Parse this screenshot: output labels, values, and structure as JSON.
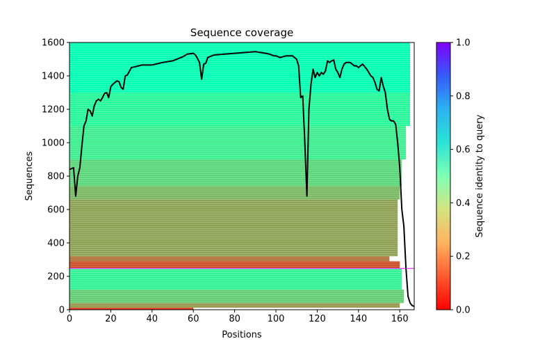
{
  "chart_data": {
    "type": "heatmap",
    "title": "Sequence coverage",
    "xlabel": "Positions",
    "ylabel": "Sequences",
    "xlim": [
      0,
      167
    ],
    "ylim": [
      0,
      1600
    ],
    "xticks": [
      "0",
      "20",
      "40",
      "60",
      "80",
      "100",
      "120",
      "140",
      "160"
    ],
    "xtick_values": [
      0,
      20,
      40,
      60,
      80,
      100,
      120,
      140,
      160
    ],
    "yticks": [
      "0",
      "200",
      "400",
      "600",
      "800",
      "1000",
      "1200",
      "1400",
      "1600"
    ],
    "ytick_values": [
      0,
      200,
      400,
      600,
      800,
      1000,
      1200,
      1400,
      1600
    ],
    "colorbar": {
      "label": "Sequence identity to query",
      "range": [
        0,
        1
      ],
      "ticks": [
        "0.0",
        "0.2",
        "0.4",
        "0.6",
        "0.8",
        "1.0"
      ],
      "tick_values": [
        0,
        0.2,
        0.4,
        0.6,
        0.8,
        1.0
      ],
      "colormap": "rainbow_r"
    },
    "bands": [
      {
        "y0": 0,
        "y1": 12,
        "x0": 0,
        "x1": 60,
        "identity": 0.06
      },
      {
        "y0": 12,
        "y1": 40,
        "x0": 0,
        "x1": 160,
        "identity": 0.2
      },
      {
        "y0": 40,
        "y1": 120,
        "x0": 0,
        "x1": 162,
        "identity": 0.3
      },
      {
        "y0": 120,
        "y1": 245,
        "x0": 0,
        "x1": 161,
        "identity": 0.4
      },
      {
        "y0": 245,
        "y1": 250,
        "x0": 0,
        "x1": 167,
        "identity": 0.98
      },
      {
        "y0": 250,
        "y1": 290,
        "x0": 0,
        "x1": 160,
        "identity": 0.1
      },
      {
        "y0": 290,
        "y1": 320,
        "x0": 0,
        "x1": 155,
        "identity": 0.15
      },
      {
        "y0": 320,
        "y1": 660,
        "x0": 0,
        "x1": 159,
        "identity": 0.22
      },
      {
        "y0": 660,
        "y1": 740,
        "x0": 0,
        "x1": 160,
        "identity": 0.26
      },
      {
        "y0": 740,
        "y1": 900,
        "x0": 0,
        "x1": 161,
        "identity": 0.32
      },
      {
        "y0": 900,
        "y1": 1100,
        "x0": 0,
        "x1": 163,
        "identity": 0.38
      },
      {
        "y0": 1100,
        "y1": 1300,
        "x0": 0,
        "x1": 165,
        "identity": 0.42
      },
      {
        "y0": 1300,
        "y1": 1600,
        "x0": 0,
        "x1": 165,
        "identity": 0.5
      }
    ],
    "coverage": {
      "x": [
        0,
        2,
        3,
        4,
        5,
        6,
        7,
        8,
        9,
        10,
        11,
        12,
        13,
        14,
        15,
        16,
        17,
        18,
        19,
        20,
        21,
        22,
        23,
        24,
        25,
        26,
        27,
        28,
        30,
        32,
        35,
        40,
        45,
        50,
        55,
        57,
        60,
        61,
        62,
        63,
        64,
        65,
        66,
        67,
        70,
        75,
        80,
        85,
        90,
        95,
        97,
        99,
        100,
        102,
        105,
        108,
        110,
        111,
        112,
        113,
        114,
        115,
        116,
        117,
        118,
        119,
        120,
        121,
        122,
        123,
        124,
        125,
        126,
        127,
        128,
        129,
        130,
        131,
        132,
        133,
        134,
        135,
        136,
        137,
        138,
        139,
        140,
        142,
        144,
        146,
        147,
        148,
        149,
        150,
        151,
        152,
        153,
        154,
        155,
        156,
        157,
        158,
        159,
        160,
        161,
        162,
        163,
        164,
        165,
        166,
        167
      ],
      "y": [
        840,
        850,
        680,
        800,
        850,
        980,
        1100,
        1130,
        1200,
        1190,
        1160,
        1220,
        1250,
        1260,
        1250,
        1270,
        1295,
        1300,
        1270,
        1335,
        1350,
        1360,
        1370,
        1365,
        1330,
        1320,
        1400,
        1405,
        1450,
        1455,
        1465,
        1465,
        1480,
        1490,
        1515,
        1530,
        1535,
        1525,
        1505,
        1480,
        1380,
        1470,
        1475,
        1510,
        1525,
        1530,
        1535,
        1540,
        1545,
        1535,
        1530,
        1520,
        1520,
        1510,
        1520,
        1520,
        1500,
        1460,
        1270,
        1280,
        1000,
        680,
        1200,
        1350,
        1440,
        1390,
        1420,
        1400,
        1420,
        1410,
        1430,
        1490,
        1480,
        1490,
        1495,
        1440,
        1420,
        1390,
        1440,
        1470,
        1480,
        1480,
        1480,
        1470,
        1460,
        1460,
        1450,
        1470,
        1440,
        1400,
        1390,
        1360,
        1320,
        1310,
        1390,
        1340,
        1300,
        1200,
        1140,
        1130,
        1130,
        1110,
        1000,
        850,
        600,
        500,
        250,
        80,
        40,
        25,
        20
      ]
    }
  }
}
